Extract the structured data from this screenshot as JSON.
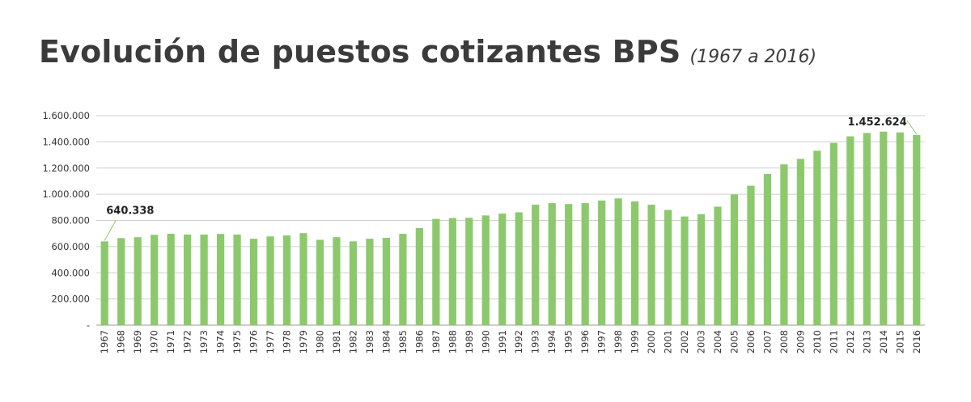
{
  "title": "Evolución de puestos cotizantes BPS",
  "subtitle": "(1967 a 2016)",
  "colors": {
    "bar": "#8cc96c",
    "grid": "#cfcfcf",
    "axis": "#9a9a9a",
    "text": "#3b3b3b"
  },
  "chart_data": {
    "type": "bar",
    "title": "Evolución de puestos cotizantes BPS",
    "subtitle": "(1967 a 2016)",
    "xlabel": "",
    "ylabel": "",
    "ylim": [
      0,
      1600000
    ],
    "grid": true,
    "legend": "none",
    "y_ticks": [
      0,
      200000,
      400000,
      600000,
      800000,
      1000000,
      1200000,
      1400000,
      1600000
    ],
    "y_tick_labels": [
      "-",
      "200.000",
      "400.000",
      "600.000",
      "800.000",
      "1.000.000",
      "1.200.000",
      "1.400.000",
      "1.600.000"
    ],
    "categories": [
      "1967",
      "1968",
      "1969",
      "1970",
      "1971",
      "1972",
      "1973",
      "1974",
      "1975",
      "1976",
      "1977",
      "1978",
      "1979",
      "1980",
      "1981",
      "1982",
      "1983",
      "1984",
      "1985",
      "1986",
      "1987",
      "1988",
      "1989",
      "1990",
      "1991",
      "1992",
      "1993",
      "1994",
      "1995",
      "1996",
      "1997",
      "1998",
      "1999",
      "2000",
      "2001",
      "2002",
      "2003",
      "2004",
      "2005",
      "2006",
      "2007",
      "2008",
      "2009",
      "2010",
      "2011",
      "2012",
      "2013",
      "2014",
      "2015",
      "2016"
    ],
    "values": [
      640338,
      665000,
      672000,
      690000,
      698000,
      692000,
      692000,
      697000,
      692000,
      660000,
      678000,
      685000,
      703000,
      652000,
      672000,
      640000,
      660000,
      667000,
      698000,
      742000,
      812000,
      818000,
      820000,
      838000,
      852000,
      862000,
      920000,
      932000,
      925000,
      932000,
      952000,
      968000,
      945000,
      920000,
      880000,
      830000,
      848000,
      905000,
      998000,
      1065000,
      1155000,
      1228000,
      1270000,
      1332000,
      1392000,
      1442000,
      1468000,
      1478000,
      1472000,
      1452624
    ],
    "annotations": [
      {
        "category": "1967",
        "label": "640.338"
      },
      {
        "category": "2016",
        "label": "1.452.624"
      }
    ]
  }
}
